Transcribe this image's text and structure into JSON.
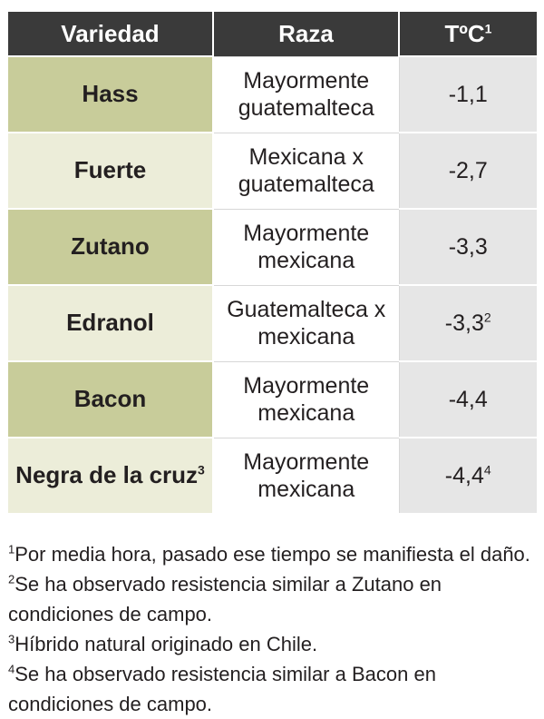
{
  "table": {
    "headers": {
      "variety": "Variedad",
      "race": "Raza",
      "temp": "TºC",
      "temp_sup": "1"
    },
    "rows": [
      {
        "variety": "Hass",
        "variety_sup": "",
        "race_line1": "Mayormente",
        "race_line2": "guatemalteca",
        "temp": "-1,1",
        "temp_sup": ""
      },
      {
        "variety": "Fuerte",
        "variety_sup": "",
        "race_line1": "Mexicana x",
        "race_line2": "guatemalteca",
        "temp": "-2,7",
        "temp_sup": ""
      },
      {
        "variety": "Zutano",
        "variety_sup": "",
        "race_line1": "Mayormente",
        "race_line2": "mexicana",
        "temp": "-3,3",
        "temp_sup": ""
      },
      {
        "variety": "Edranol",
        "variety_sup": "",
        "race_line1": "Guatemalteca x",
        "race_line2": "mexicana",
        "temp": "-3,3",
        "temp_sup": "2"
      },
      {
        "variety": "Bacon",
        "variety_sup": "",
        "race_line1": "Mayormente",
        "race_line2": "mexicana",
        "temp": "-4,4",
        "temp_sup": ""
      },
      {
        "variety": "Negra de la cruz",
        "variety_sup": "3",
        "race_line1": "Mayormente",
        "race_line2": "mexicana",
        "temp": "-4,4",
        "temp_sup": "4"
      }
    ]
  },
  "footnotes": [
    {
      "mark": "1",
      "line1": "Por media hora, pasado ese tiempo se manifiesta el daño.",
      "line2": ""
    },
    {
      "mark": "2",
      "line1": "Se ha observado resistencia similar a Zutano en",
      "line2": "condiciones de campo."
    },
    {
      "mark": "3",
      "line1": "Híbrido natural originado en Chile.",
      "line2": ""
    },
    {
      "mark": "4",
      "line1": "Se ha observado resistencia similar a Bacon en",
      "line2": "condiciones de campo."
    }
  ],
  "colors": {
    "header_bg": "#3a3a3a",
    "variety_dark": "#c8cc9a",
    "variety_light": "#ecedd9",
    "temp_bg": "#e6e6e6"
  }
}
